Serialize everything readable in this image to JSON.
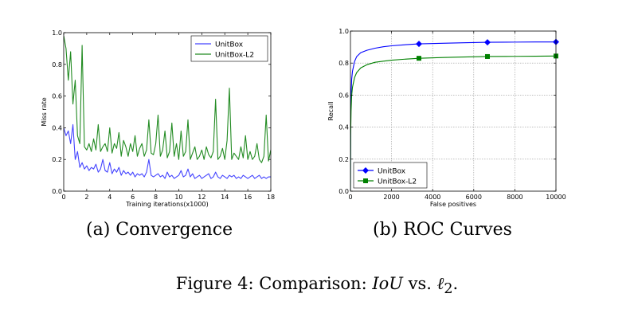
{
  "chart_data": [
    {
      "type": "line",
      "caption": "(a) Convergence",
      "xlabel": "Training iterations(x1000)",
      "ylabel": "Miss rate",
      "xlim": [
        0,
        18
      ],
      "ylim": [
        0,
        1.0
      ],
      "xticks": [
        0,
        2,
        4,
        6,
        8,
        10,
        12,
        14,
        16,
        18
      ],
      "xtick_labels": [
        "0",
        "2",
        "4",
        "6",
        "8",
        "10",
        "12",
        "14",
        "16",
        "18"
      ],
      "yticks": [
        0,
        0.2,
        0.4,
        0.6,
        0.8,
        1.0
      ],
      "ytick_labels": [
        "0.0",
        "0.2",
        "0.4",
        "0.6",
        "0.8",
        "1.0"
      ],
      "grid": false,
      "legend_position": "top-right",
      "series": [
        {
          "name": "UnitBox",
          "color": "#4444ff",
          "x": [
            0,
            0.2,
            0.4,
            0.6,
            0.8,
            1.0,
            1.2,
            1.4,
            1.6,
            1.8,
            2.0,
            2.2,
            2.4,
            2.6,
            2.8,
            3.0,
            3.2,
            3.4,
            3.6,
            3.8,
            4.0,
            4.2,
            4.4,
            4.6,
            4.8,
            5.0,
            5.2,
            5.4,
            5.6,
            5.8,
            6.0,
            6.2,
            6.4,
            6.6,
            6.8,
            7.0,
            7.2,
            7.4,
            7.6,
            7.8,
            8.0,
            8.2,
            8.4,
            8.6,
            8.8,
            9.0,
            9.2,
            9.4,
            9.6,
            9.8,
            10.0,
            10.2,
            10.4,
            10.6,
            10.8,
            11.0,
            11.2,
            11.4,
            11.6,
            11.8,
            12.0,
            12.2,
            12.4,
            12.6,
            12.8,
            13.0,
            13.2,
            13.4,
            13.6,
            13.8,
            14.0,
            14.2,
            14.4,
            14.6,
            14.8,
            15.0,
            15.2,
            15.4,
            15.6,
            15.8,
            16.0,
            16.2,
            16.4,
            16.6,
            16.8,
            17.0,
            17.2,
            17.4,
            17.6,
            17.8,
            18.0
          ],
          "values": [
            0.4,
            0.35,
            0.38,
            0.3,
            0.42,
            0.2,
            0.25,
            0.15,
            0.18,
            0.14,
            0.16,
            0.13,
            0.15,
            0.14,
            0.17,
            0.12,
            0.14,
            0.2,
            0.13,
            0.12,
            0.18,
            0.11,
            0.14,
            0.12,
            0.15,
            0.1,
            0.13,
            0.11,
            0.12,
            0.1,
            0.12,
            0.09,
            0.11,
            0.1,
            0.11,
            0.09,
            0.12,
            0.2,
            0.1,
            0.09,
            0.1,
            0.11,
            0.09,
            0.1,
            0.08,
            0.12,
            0.09,
            0.1,
            0.08,
            0.09,
            0.1,
            0.13,
            0.09,
            0.1,
            0.14,
            0.09,
            0.11,
            0.08,
            0.09,
            0.1,
            0.08,
            0.09,
            0.1,
            0.11,
            0.08,
            0.09,
            0.12,
            0.09,
            0.08,
            0.1,
            0.09,
            0.08,
            0.1,
            0.09,
            0.1,
            0.08,
            0.09,
            0.08,
            0.1,
            0.09,
            0.08,
            0.09,
            0.1,
            0.08,
            0.09,
            0.1,
            0.08,
            0.09,
            0.08,
            0.09,
            0.09
          ]
        },
        {
          "name": "UnitBox-L2",
          "color": "#228b22",
          "x": [
            0,
            0.2,
            0.4,
            0.6,
            0.8,
            1.0,
            1.2,
            1.4,
            1.6,
            1.8,
            2.0,
            2.2,
            2.4,
            2.6,
            2.8,
            3.0,
            3.2,
            3.4,
            3.6,
            3.8,
            4.0,
            4.2,
            4.4,
            4.6,
            4.8,
            5.0,
            5.2,
            5.4,
            5.6,
            5.8,
            6.0,
            6.2,
            6.4,
            6.6,
            6.8,
            7.0,
            7.2,
            7.4,
            7.6,
            7.8,
            8.0,
            8.2,
            8.4,
            8.6,
            8.8,
            9.0,
            9.2,
            9.4,
            9.6,
            9.8,
            10.0,
            10.2,
            10.4,
            10.6,
            10.8,
            11.0,
            11.2,
            11.4,
            11.6,
            11.8,
            12.0,
            12.2,
            12.4,
            12.6,
            12.8,
            13.0,
            13.2,
            13.4,
            13.6,
            13.8,
            14.0,
            14.2,
            14.4,
            14.6,
            14.8,
            15.0,
            15.2,
            15.4,
            15.6,
            15.8,
            16.0,
            16.2,
            16.4,
            16.6,
            16.8,
            17.0,
            17.2,
            17.4,
            17.6,
            17.8,
            18.0
          ],
          "values": [
            0.98,
            0.9,
            0.7,
            0.88,
            0.55,
            0.7,
            0.35,
            0.3,
            0.92,
            0.28,
            0.26,
            0.3,
            0.25,
            0.33,
            0.26,
            0.42,
            0.25,
            0.28,
            0.3,
            0.25,
            0.4,
            0.24,
            0.3,
            0.27,
            0.37,
            0.22,
            0.32,
            0.28,
            0.22,
            0.3,
            0.25,
            0.35,
            0.22,
            0.27,
            0.3,
            0.22,
            0.26,
            0.45,
            0.24,
            0.23,
            0.3,
            0.48,
            0.22,
            0.26,
            0.38,
            0.21,
            0.25,
            0.43,
            0.22,
            0.3,
            0.2,
            0.38,
            0.22,
            0.25,
            0.45,
            0.2,
            0.24,
            0.28,
            0.2,
            0.22,
            0.26,
            0.2,
            0.28,
            0.23,
            0.21,
            0.25,
            0.58,
            0.2,
            0.22,
            0.27,
            0.2,
            0.32,
            0.65,
            0.2,
            0.24,
            0.22,
            0.2,
            0.28,
            0.21,
            0.35,
            0.2,
            0.25,
            0.2,
            0.22,
            0.3,
            0.2,
            0.18,
            0.22,
            0.48,
            0.19,
            0.26
          ]
        }
      ]
    },
    {
      "type": "line",
      "caption": "(b) ROC Curves",
      "xlabel": "False positives",
      "ylabel": "Recall",
      "xlim": [
        0,
        10000
      ],
      "ylim": [
        0,
        1.0
      ],
      "xticks": [
        0,
        2000,
        4000,
        6000,
        8000,
        10000
      ],
      "xtick_labels": [
        "0",
        "2000",
        "4000",
        "6000",
        "8000",
        "10000"
      ],
      "yticks": [
        0,
        0.2,
        0.4,
        0.6,
        0.8,
        1.0
      ],
      "ytick_labels": [
        "0.0",
        "0.2",
        "0.4",
        "0.6",
        "0.8",
        "1.0"
      ],
      "grid": true,
      "legend_position": "bottom-left",
      "series": [
        {
          "name": "UnitBox",
          "color": "#0000ff",
          "marker": "diamond",
          "x": [
            0,
            10,
            30,
            60,
            100,
            200,
            300,
            500,
            800,
            1200,
            1600,
            2000,
            2600,
            3333,
            4500,
            5500,
            6667,
            8000,
            9000,
            10000
          ],
          "values": [
            0,
            0.45,
            0.6,
            0.7,
            0.75,
            0.81,
            0.84,
            0.865,
            0.88,
            0.893,
            0.902,
            0.908,
            0.914,
            0.92,
            0.924,
            0.927,
            0.93,
            0.931,
            0.932,
            0.932
          ],
          "marker_x": [
            3333,
            6667,
            10000
          ],
          "marker_y": [
            0.92,
            0.93,
            0.932
          ]
        },
        {
          "name": "UnitBox-L2",
          "color": "#008000",
          "marker": "square",
          "x": [
            0,
            10,
            30,
            60,
            100,
            200,
            300,
            500,
            800,
            1200,
            1600,
            2000,
            2600,
            3333,
            4500,
            5500,
            6667,
            8000,
            9000,
            10000
          ],
          "values": [
            0,
            0.35,
            0.5,
            0.6,
            0.65,
            0.71,
            0.74,
            0.77,
            0.79,
            0.805,
            0.812,
            0.818,
            0.824,
            0.83,
            0.835,
            0.838,
            0.841,
            0.842,
            0.843,
            0.844
          ],
          "marker_x": [
            3333,
            6667,
            10000
          ],
          "marker_y": [
            0.83,
            0.841,
            0.844
          ]
        }
      ]
    }
  ],
  "figure_caption": {
    "prefix": "Figure 4:  Comparison: ",
    "iou": "IoU",
    "middle": " vs. ",
    "ell": "ℓ",
    "sub": "2",
    "suffix": "."
  }
}
